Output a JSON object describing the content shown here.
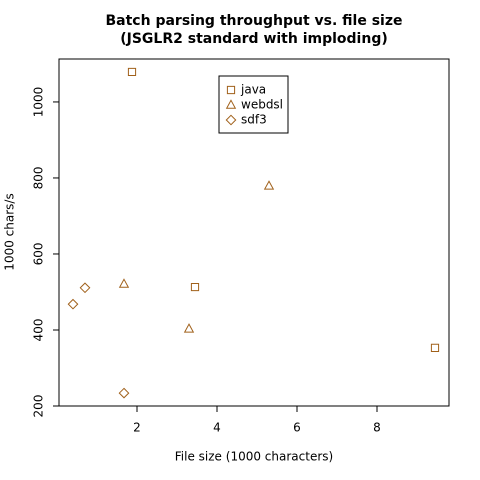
{
  "chart_data": {
    "type": "scatter",
    "title": "Batch parsing throughput vs. file size",
    "subtitle": "(JSGLR2 standard with imploding)",
    "x_label": "File size (1000 characters)",
    "y_label": "1000 chars/s",
    "xlim": [
      0.05,
      9.8
    ],
    "xticks": [
      2,
      4,
      6,
      8
    ],
    "ylim": [
      200,
      1113
    ],
    "yticks": [
      200,
      400,
      600,
      800,
      1000
    ],
    "grid": false,
    "legend": "top-center",
    "series": [
      {
        "name": "java",
        "color": "#a0601a",
        "marker": "square",
        "x": [
          1.875,
          3.45,
          9.45
        ],
        "values": [
          1079,
          513,
          353
        ]
      },
      {
        "name": "webdsl",
        "color": "#a0601a",
        "marker": "triangle",
        "x": [
          1.675,
          3.3,
          5.3
        ],
        "values": [
          521,
          403,
          779
        ]
      },
      {
        "name": "sdf3",
        "color": "#a0601a",
        "marker": "diamond",
        "x": [
          0.4,
          0.7,
          1.675
        ],
        "values": [
          468,
          511,
          234
        ]
      }
    ]
  }
}
